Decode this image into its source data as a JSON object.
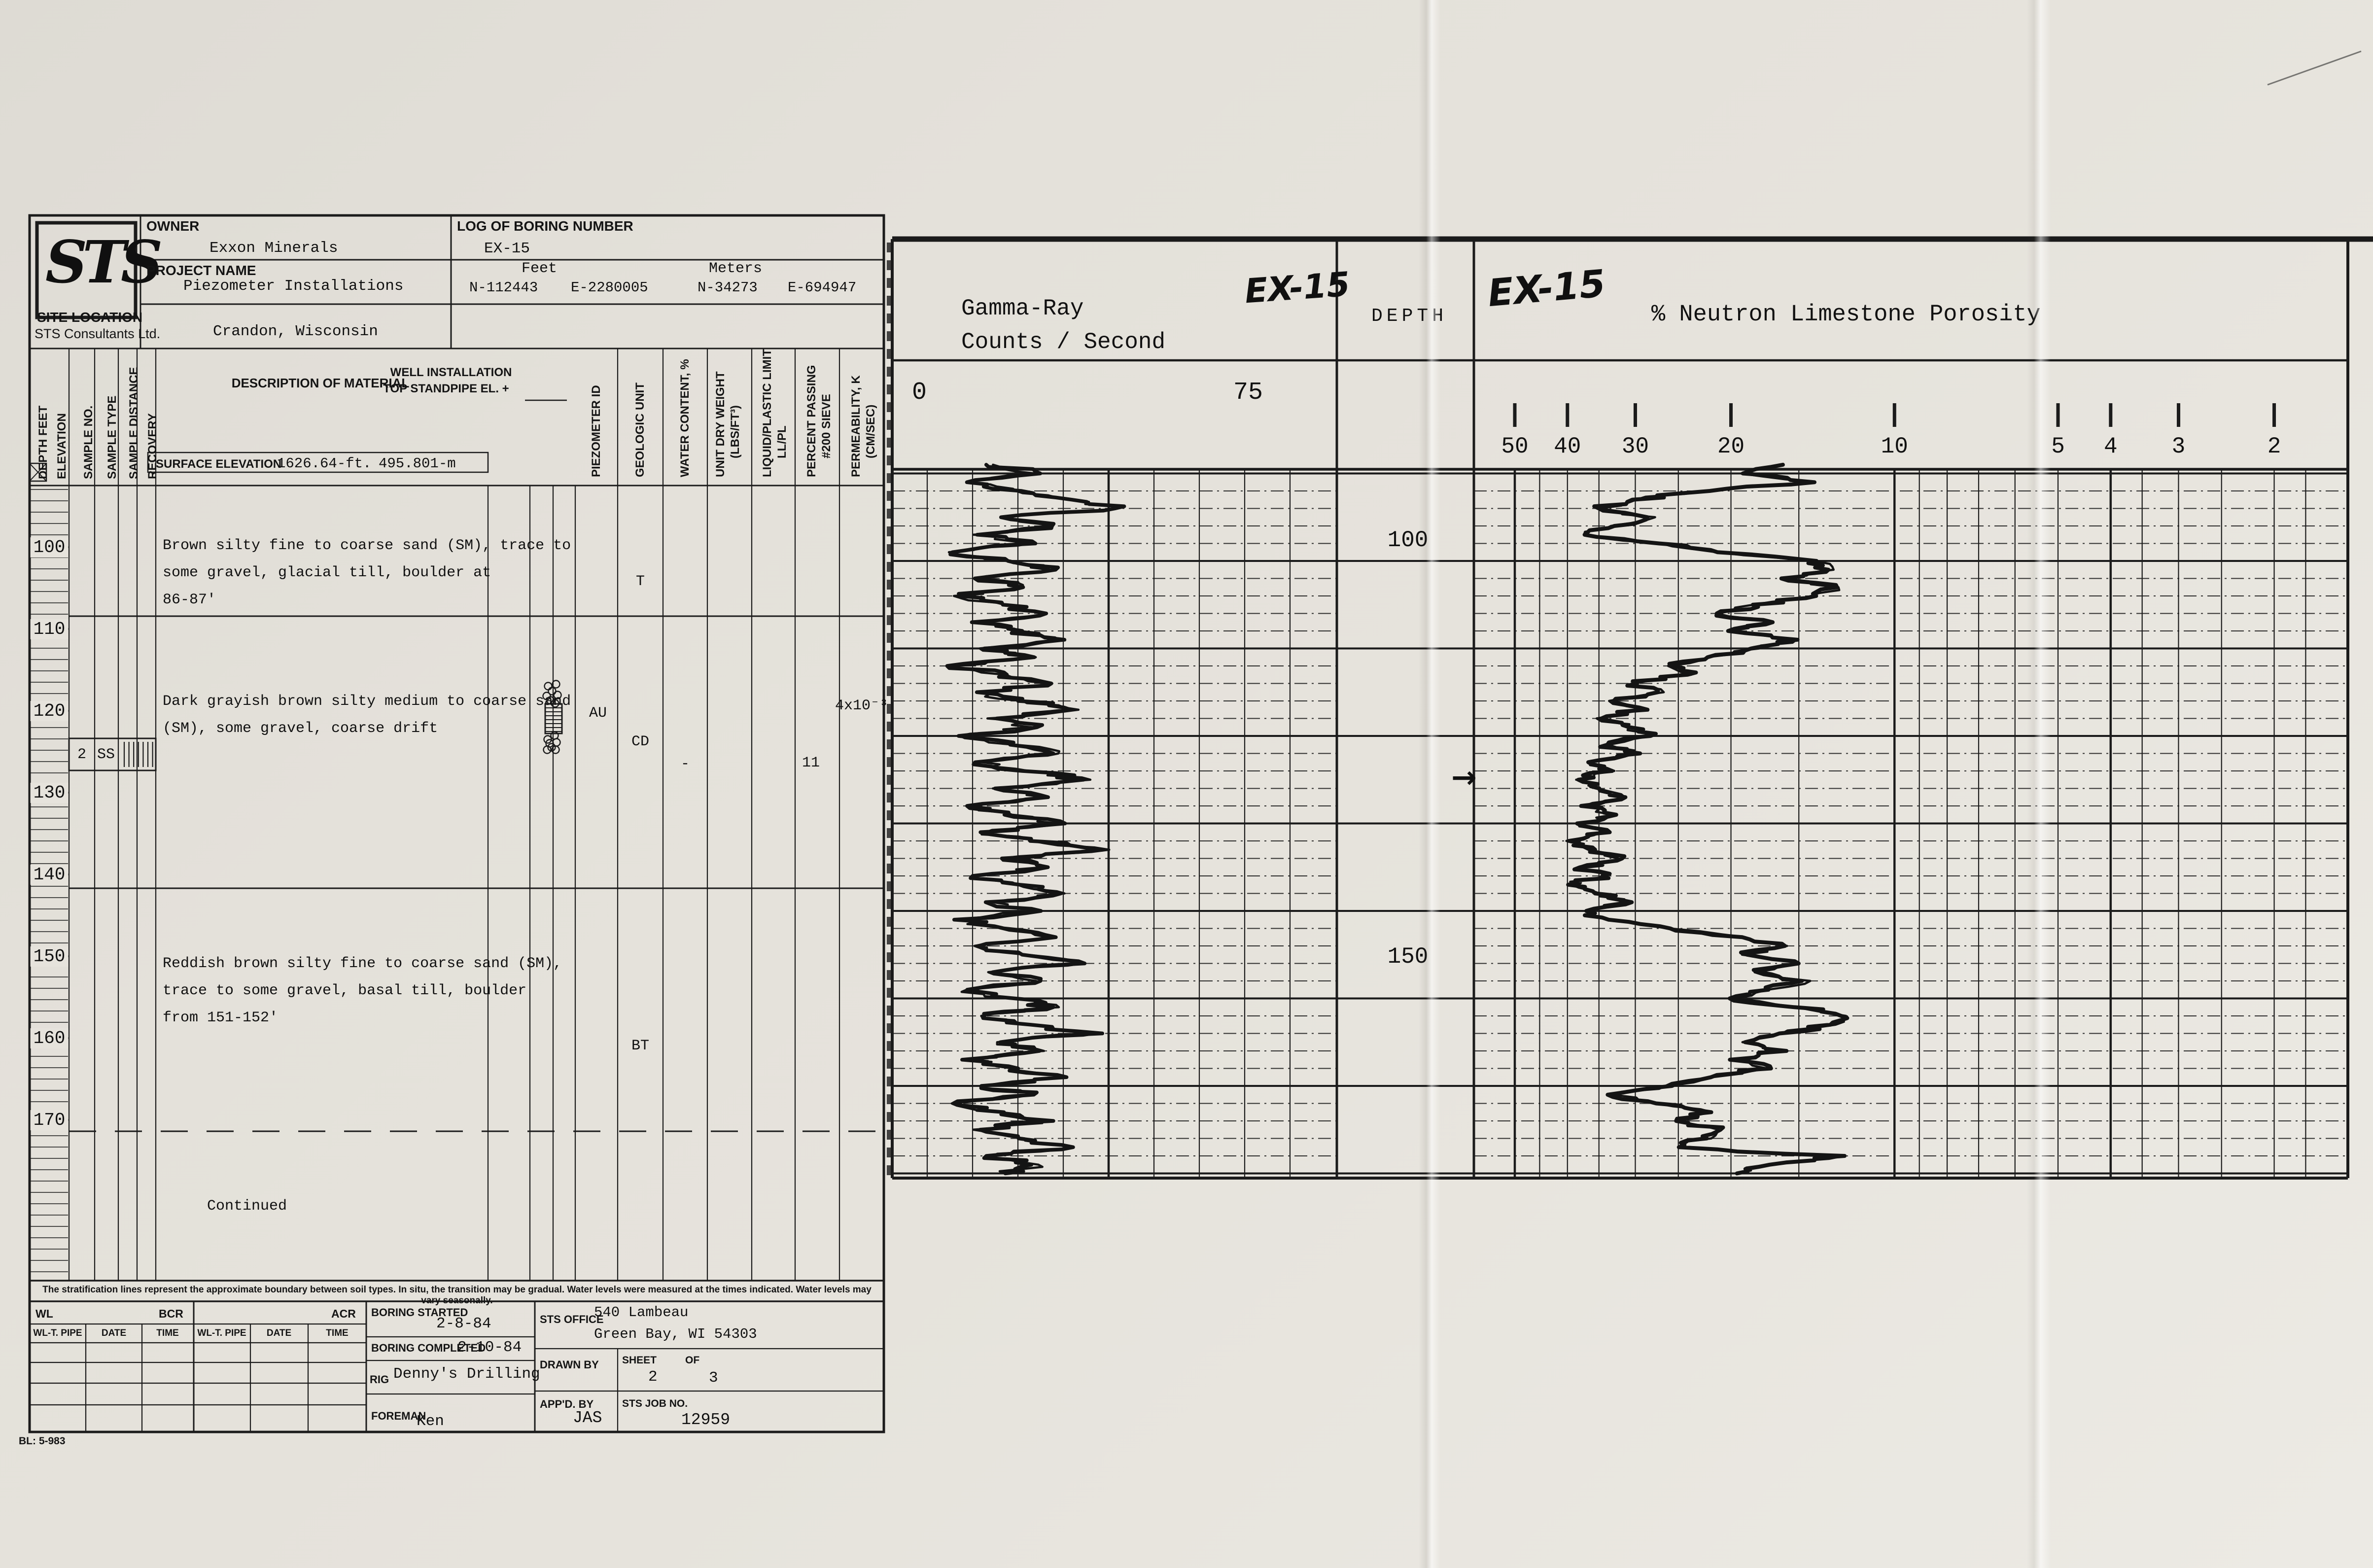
{
  "form": {
    "logo_text": "STS",
    "logo_caption": "STS Consultants Ltd.",
    "owner_label": "OWNER",
    "owner_value": "Exxon Minerals",
    "project_label": "PROJECT NAME",
    "project_value": "Piezometer Installations",
    "boring_label": "LOG OF BORING NUMBER",
    "boring_value": "EX-15",
    "feet_label": "Feet",
    "feet_n": "N-112443",
    "feet_e": "E-2280005",
    "meters_label": "Meters",
    "meters_n": "N-34273",
    "meters_e": "E-694947",
    "site_label": "SITE LOCATION",
    "site_value": "Crandon, Wisconsin",
    "well_installation_label": "WELL INSTALLATION",
    "standpipe_label": "TOP STANDPIPE EL. +",
    "description_label": "DESCRIPTION OF MATERIAL",
    "surface_elevation_label": "SURFACE ELEVATION",
    "surface_elevation_ft": "1626.64-ft.",
    "surface_elevation_m": "495.801-m",
    "column_headers_left": [
      "DEPTH  FEET",
      "ELEVATION",
      "SAMPLE NO.",
      "SAMPLE TYPE",
      "SAMPLE DISTANCE",
      "RECOVERY"
    ],
    "column_headers_right": [
      [
        "PIEZOMETER ID"
      ],
      [
        "GEOLOGIC UNIT"
      ],
      [
        "WATER CONTENT, %"
      ],
      [
        "UNIT DRY WEIGHT",
        "(LBS/FT³)"
      ],
      [
        "LIQUID/PLASTIC LIMIT",
        "LL/PL"
      ],
      [
        "PERCENT PASSING",
        "#200 SIEVE"
      ],
      [
        "PERMEABILITY, K",
        "(CM/SEC)"
      ]
    ],
    "depth_labels": [
      "100",
      "110",
      "120",
      "130",
      "140",
      "150",
      "160",
      "170"
    ],
    "layers": [
      {
        "description": [
          "Brown silty fine to coarse sand (SM), trace to",
          "some gravel, glacial till, boulder at",
          "86-87'"
        ],
        "geologic_unit": "T"
      },
      {
        "description": [
          "Dark grayish brown silty medium to coarse sand",
          "(SM), some gravel, coarse drift"
        ],
        "piezometer_id": "AU",
        "geologic_unit": "CD",
        "water_content": "-",
        "percent_passing": "11",
        "permeability": "4x10⁻³"
      },
      {
        "description": [
          "Reddish brown silty fine to coarse sand (SM),",
          "trace to some gravel, basal till, boulder",
          "from 151-152'"
        ],
        "geologic_unit": "BT"
      },
      {
        "description": [
          "Continued"
        ]
      }
    ],
    "sample": {
      "no": "2",
      "type": "SS"
    },
    "disclaimer": "The stratification lines represent the approximate boundary between soil types. In situ, the transition may be gradual. Water levels were measured at the times indicated. Water levels may vary seasonally.",
    "footer": {
      "wl_label": "WL",
      "bcr_label": "BCR",
      "acr_label": "ACR",
      "water_table_headers": [
        "WL-T. PIPE",
        "DATE",
        "TIME",
        "WL-T. PIPE",
        "DATE",
        "TIME"
      ],
      "boring_started_label": "BORING STARTED",
      "boring_started_value": "2-8-84",
      "boring_completed_label": "BORING COMPLETED",
      "boring_completed_value": "2-10-84",
      "rig_label": "RIG",
      "rig_value": "Denny's Drilling",
      "foreman_label": "FOREMAN",
      "foreman_value": "Ken",
      "sts_office_label": "STS OFFICE",
      "sts_office_value1": "540 Lambeau",
      "sts_office_value2": "Green Bay, WI 54303",
      "drawn_by_label": "DRAWN BY",
      "sheet_label": "SHEET",
      "sheet_value": "2",
      "of_label": "OF",
      "of_value": "3",
      "appd_by_label": "APP'D. BY",
      "appd_by_value": "JAS",
      "job_no_label": "STS JOB NO.",
      "job_no_value": "12959"
    },
    "form_code": "BL: 5-983"
  },
  "charts": {
    "gamma": {
      "title_line1": "Gamma-Ray",
      "title_line2": "Counts / Second",
      "well_annotation": "EX-15",
      "scale_left": "0",
      "scale_right": "75"
    },
    "depth": {
      "header": "DEPTH",
      "labels": [
        "100",
        "150"
      ]
    },
    "neutron": {
      "well_annotation": "EX-15",
      "title": "% Neutron Limestone Porosity",
      "scale_ticks": [
        "50",
        "40",
        "30",
        "20",
        "10",
        "5",
        "4",
        "3",
        "2"
      ]
    },
    "arrow_marker": "→"
  },
  "chart_data": [
    {
      "type": "line",
      "well": "EX-15",
      "title": "Gamma-Ray Counts / Second",
      "value_axis": {
        "label": "Gamma-Ray Counts / Second",
        "scale": "linear",
        "min": 0,
        "max": 75,
        "tick_labels": [
          "0",
          "75"
        ],
        "gridline_step": 10
      },
      "depth_axis": {
        "label": "DEPTH",
        "unit": "feet",
        "top": 89,
        "bottom": 170.5,
        "tick_labels": [
          100,
          150
        ],
        "minor_step_ft": 2,
        "major_step_ft": 10
      },
      "legend": "none",
      "grid": "on",
      "series": [
        {
          "name": "gamma-ray-counts-per-second",
          "points": [
            [
              89,
              15
            ],
            [
              90,
              26
            ],
            [
              91,
              9
            ],
            [
              92,
              21
            ],
            [
              93,
              34
            ],
            [
              94,
              44
            ],
            [
              95,
              18
            ],
            [
              96,
              30
            ],
            [
              97,
              11
            ],
            [
              98,
              24
            ],
            [
              99,
              6
            ],
            [
              100,
              19
            ],
            [
              101,
              29
            ],
            [
              102,
              12
            ],
            [
              103,
              23
            ],
            [
              104,
              7
            ],
            [
              105,
              17
            ],
            [
              106,
              27
            ],
            [
              107,
              10
            ],
            [
              108,
              21
            ],
            [
              109,
              31
            ],
            [
              110,
              13
            ],
            [
              111,
              24
            ],
            [
              112,
              6
            ],
            [
              113,
              18
            ],
            [
              114,
              28
            ],
            [
              115,
              11
            ],
            [
              116,
              22
            ],
            [
              117,
              34
            ],
            [
              118,
              15
            ],
            [
              119,
              25
            ],
            [
              120,
              8
            ],
            [
              121,
              20
            ],
            [
              122,
              30
            ],
            [
              123,
              12
            ],
            [
              124,
              23
            ],
            [
              125,
              37
            ],
            [
              126,
              16
            ],
            [
              127,
              27
            ],
            [
              128,
              9
            ],
            [
              129,
              19
            ],
            [
              130,
              31
            ],
            [
              131,
              13
            ],
            [
              132,
              24
            ],
            [
              133,
              41
            ],
            [
              134,
              17
            ],
            [
              135,
              28
            ],
            [
              136,
              10
            ],
            [
              137,
              21
            ],
            [
              138,
              32
            ],
            [
              139,
              14
            ],
            [
              140,
              25
            ],
            [
              141,
              7
            ],
            [
              142,
              18
            ],
            [
              143,
              29
            ],
            [
              144,
              11
            ],
            [
              145,
              22
            ],
            [
              146,
              35
            ],
            [
              147,
              15
            ],
            [
              148,
              26
            ],
            [
              149,
              8
            ],
            [
              150,
              19
            ],
            [
              151,
              30
            ],
            [
              152,
              12
            ],
            [
              153,
              23
            ],
            [
              154,
              39
            ],
            [
              155,
              16
            ],
            [
              156,
              27
            ],
            [
              157,
              9
            ],
            [
              158,
              20
            ],
            [
              159,
              31
            ],
            [
              160,
              13
            ],
            [
              161,
              24
            ],
            [
              162,
              6
            ],
            [
              163,
              17
            ],
            [
              164,
              28
            ],
            [
              165,
              11
            ],
            [
              166,
              22
            ],
            [
              167,
              33
            ],
            [
              168,
              14
            ],
            [
              169,
              25
            ],
            [
              170,
              18
            ]
          ]
        }
      ]
    },
    {
      "type": "line",
      "well": "EX-15",
      "title": "% Neutron Limestone Porosity",
      "value_axis": {
        "label": "% Neutron Limestone Porosity",
        "scale": "logarithmic-reversed",
        "ticks": [
          50,
          40,
          30,
          20,
          10,
          5,
          4,
          3,
          2
        ],
        "min": 1.5,
        "max": 57
      },
      "depth_axis": {
        "label": "DEPTH",
        "unit": "feet",
        "top": 89,
        "bottom": 170.5,
        "tick_labels": [
          100,
          150
        ],
        "minor_step_ft": 2,
        "major_step_ft": 10,
        "annotation_arrow_depth": 125
      },
      "legend": "none",
      "grid": "on",
      "series": [
        {
          "name": "neutron-limestone-porosity-percent",
          "points": [
            [
              89,
              16
            ],
            [
              90,
              19
            ],
            [
              91,
              14
            ],
            [
              92,
              22
            ],
            [
              93,
              30
            ],
            [
              94,
              35
            ],
            [
              95,
              28
            ],
            [
              96,
              33
            ],
            [
              97,
              37
            ],
            [
              98,
              27
            ],
            [
              99,
              21
            ],
            [
              100,
              14
            ],
            [
              101,
              13
            ],
            [
              102,
              16
            ],
            [
              103,
              12.5
            ],
            [
              104,
              14
            ],
            [
              105,
              18
            ],
            [
              106,
              21
            ],
            [
              107,
              17
            ],
            [
              108,
              20
            ],
            [
              109,
              15
            ],
            [
              110,
              18
            ],
            [
              111,
              22
            ],
            [
              112,
              26
            ],
            [
              113,
              24
            ],
            [
              114,
              30
            ],
            [
              115,
              27
            ],
            [
              116,
              33
            ],
            [
              117,
              29
            ],
            [
              118,
              35
            ],
            [
              119,
              31
            ],
            [
              120,
              28
            ],
            [
              121,
              34
            ],
            [
              122,
              30
            ],
            [
              123,
              36
            ],
            [
              124,
              33
            ],
            [
              125,
              39
            ],
            [
              126,
              35
            ],
            [
              127,
              31
            ],
            [
              128,
              37
            ],
            [
              129,
              33
            ],
            [
              130,
              38
            ],
            [
              131,
              34
            ],
            [
              132,
              40
            ],
            [
              133,
              36
            ],
            [
              134,
              32
            ],
            [
              135,
              38
            ],
            [
              136,
              34
            ],
            [
              137,
              40
            ],
            [
              138,
              35
            ],
            [
              139,
              31
            ],
            [
              140,
              37
            ],
            [
              141,
              34
            ],
            [
              142,
              26
            ],
            [
              143,
              19
            ],
            [
              144,
              16
            ],
            [
              145,
              19
            ],
            [
              146,
              15
            ],
            [
              147,
              18
            ],
            [
              148,
              14.5
            ],
            [
              149,
              17
            ],
            [
              150,
              20
            ],
            [
              151,
              15
            ],
            [
              152,
              12.5
            ],
            [
              153,
              13
            ],
            [
              154,
              16
            ],
            [
              155,
              19
            ],
            [
              156,
              16
            ],
            [
              157,
              20
            ],
            [
              158,
              17
            ],
            [
              159,
              22
            ],
            [
              160,
              26
            ],
            [
              161,
              33
            ],
            [
              162,
              27
            ],
            [
              163,
              22
            ],
            [
              164,
              25
            ],
            [
              165,
              21
            ],
            [
              166,
              22
            ],
            [
              167,
              25
            ],
            [
              168,
              12.3
            ],
            [
              169,
              17
            ],
            [
              170,
              19.5
            ]
          ]
        }
      ]
    }
  ]
}
